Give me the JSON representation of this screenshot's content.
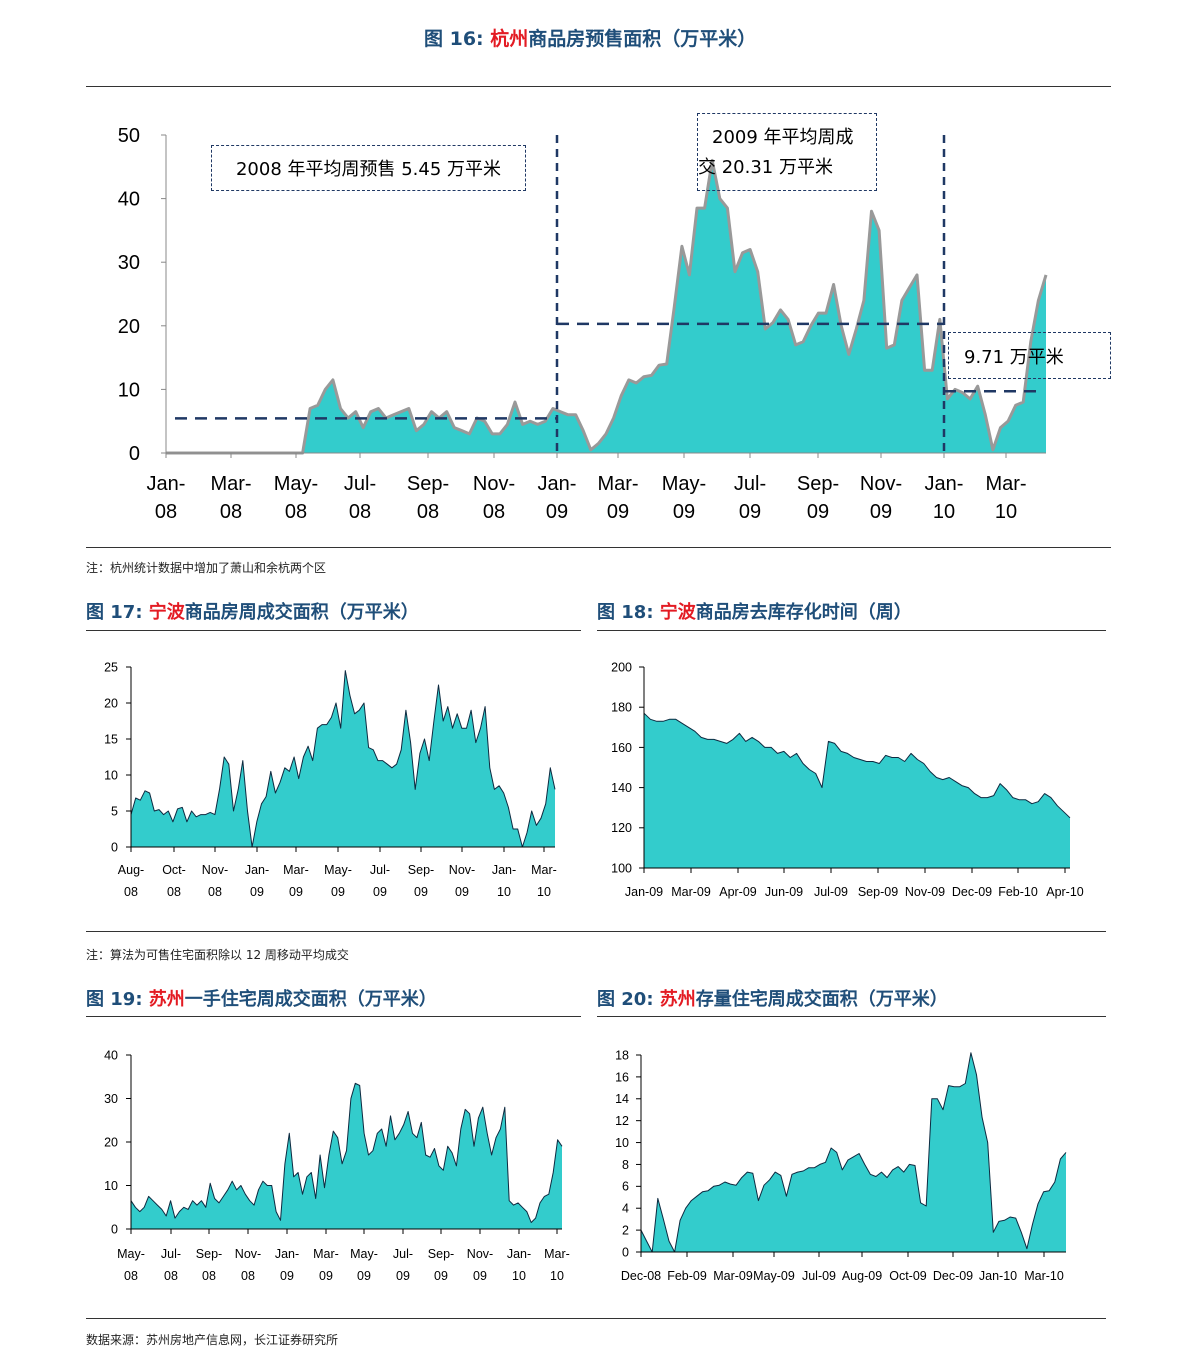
{
  "fig16": {
    "num": "图 16:",
    "city": "杭州",
    "rest": "商品房预售面积（万平米）",
    "note": "注：杭州统计数据中增加了萧山和余杭两个区",
    "annotations": [
      "2008 年平均周预售 5.45 万平米",
      "2009 年平均周成",
      "交 20.31 万平米",
      "9.71 万平米"
    ]
  },
  "fig17": {
    "num": "图 17:",
    "city": "宁波",
    "rest": "商品房周成交面积（万平米）"
  },
  "fig18": {
    "num": "图 18:",
    "city": "宁波",
    "rest": "商品房去库存化时间（周）"
  },
  "note2": "注：算法为可售住宅面积除以 12 周移动平均成交",
  "fig19": {
    "num": "图 19:",
    "city": "苏州",
    "rest": "一手住宅周成交面积（万平米）"
  },
  "fig20": {
    "num": "图 20:",
    "city": "苏州",
    "rest": "存量住宅周成交面积（万平米）"
  },
  "source": "数据来源：苏州房地产信息网，长江证券研究所",
  "colors": {
    "fill": "#33cccc",
    "title": "#1f4e79",
    "city": "#e31b23",
    "outline16": "#999999",
    "dash": "#1f3864"
  },
  "chart_data": [
    {
      "id": "fig16",
      "type": "area",
      "ylim": [
        0,
        50
      ],
      "yticks": [
        "0",
        "10",
        "20",
        "30",
        "40",
        "50"
      ],
      "xticks": [
        [
          "Jan-",
          "08"
        ],
        [
          "Mar-",
          "08"
        ],
        [
          "May-",
          "08"
        ],
        [
          "Jul-",
          "08"
        ],
        [
          "Sep-",
          "08"
        ],
        [
          "Nov-",
          "08"
        ],
        [
          "Jan-",
          "09"
        ],
        [
          "Mar-",
          "09"
        ],
        [
          "May-",
          "09"
        ],
        [
          "Jul-",
          "09"
        ],
        [
          "Sep-",
          "09"
        ],
        [
          "Nov-",
          "09"
        ],
        [
          "Jan-",
          "10"
        ],
        [
          "Mar-",
          "10"
        ]
      ],
      "averages": [
        5.45,
        20.31,
        9.71
      ],
      "values": [
        0,
        0,
        0,
        0,
        0,
        0,
        0,
        0,
        0,
        0,
        0,
        0,
        0,
        0,
        0,
        0,
        0,
        0,
        0,
        7,
        7.5,
        10,
        11.5,
        7,
        5.5,
        6.5,
        4,
        6.5,
        7,
        5.5,
        6,
        6.5,
        7,
        3.5,
        4.5,
        6.5,
        5.5,
        6.5,
        4,
        3.5,
        3,
        5.5,
        5,
        3,
        3,
        4.5,
        8,
        4.5,
        5,
        4.5,
        5,
        7,
        6.5,
        6,
        6,
        3.5,
        0.5,
        1.5,
        3,
        5.5,
        9,
        11.5,
        11,
        12,
        12.2,
        13.8,
        14,
        23,
        32.5,
        28,
        38.5,
        38.5,
        46,
        40,
        38.5,
        28.5,
        31.5,
        32,
        28.5,
        19.5,
        20.5,
        22.5,
        21,
        17,
        17.5,
        20,
        22,
        22,
        26.5,
        20,
        15.5,
        19.5,
        24,
        38,
        35,
        16.5,
        17,
        24,
        26,
        28,
        13,
        13,
        21,
        8.5,
        10,
        9.5,
        8.5,
        10.5,
        6,
        0.5,
        4,
        5,
        7.5,
        8,
        17.5,
        24,
        28
      ]
    },
    {
      "id": "fig17",
      "type": "area",
      "ylim": [
        0,
        25
      ],
      "yticks": [
        "0",
        "5",
        "10",
        "15",
        "20",
        "25"
      ],
      "xticks": [
        [
          "Aug-",
          "08"
        ],
        [
          "Oct-",
          "08"
        ],
        [
          "Nov-",
          "08"
        ],
        [
          "Jan-",
          "09"
        ],
        [
          "Mar-",
          "09"
        ],
        [
          "May-",
          "09"
        ],
        [
          "Jul-",
          "09"
        ],
        [
          "Sep-",
          "09"
        ],
        [
          "Nov-",
          "09"
        ],
        [
          "Jan-",
          "10"
        ],
        [
          "Mar-",
          "10"
        ]
      ],
      "values": [
        4.5,
        6.8,
        6.5,
        7.8,
        7.5,
        5,
        5.2,
        4.5,
        5,
        3.5,
        5.3,
        5.5,
        3.5,
        5,
        4.2,
        4.5,
        4.5,
        4.8,
        4.5,
        8,
        12.5,
        11.5,
        5,
        8,
        12,
        5,
        0,
        3.5,
        6,
        7,
        10.5,
        7.5,
        9,
        11,
        10.5,
        12.5,
        9.5,
        12.5,
        14,
        12,
        16.5,
        17,
        17,
        18,
        20,
        16.5,
        24.5,
        21,
        18.5,
        19,
        20,
        13.8,
        13.5,
        12,
        12,
        11.5,
        11,
        11.5,
        13.5,
        19,
        14.5,
        8,
        13,
        15,
        12,
        17.5,
        22.5,
        17.5,
        19.5,
        16.5,
        18.5,
        16.5,
        16.5,
        19,
        14.5,
        16.5,
        19.5,
        11,
        8,
        8.5,
        7.5,
        5.5,
        2.5,
        2.5,
        0,
        2,
        5,
        3,
        4,
        6,
        11,
        8
      ]
    },
    {
      "id": "fig18",
      "type": "area",
      "ylim": [
        100,
        200
      ],
      "yticks": [
        "100",
        "120",
        "140",
        "160",
        "180",
        "200"
      ],
      "xticks": [
        [
          "Jan-09"
        ],
        [
          "Mar-09"
        ],
        [
          "Apr-09"
        ],
        [
          "Jun-09"
        ],
        [
          "Jul-09"
        ],
        [
          "Sep-09"
        ],
        [
          "Nov-09"
        ],
        [
          "Dec-09"
        ],
        [
          "Feb-10"
        ],
        [
          "Apr-10"
        ]
      ],
      "values": [
        177,
        174,
        173,
        173,
        174,
        174,
        172,
        170,
        168,
        165,
        164,
        164,
        163,
        162,
        164,
        167,
        163,
        165,
        163,
        160,
        160,
        157,
        158,
        155,
        157,
        152,
        149,
        147,
        140,
        163,
        162,
        158,
        157,
        155,
        154,
        153,
        153,
        152,
        156,
        155,
        155,
        153,
        157,
        154,
        152,
        148,
        145,
        144,
        145,
        143,
        141,
        140,
        137,
        135,
        135,
        136,
        142,
        139,
        135,
        134,
        134,
        132,
        133,
        137,
        135,
        131,
        128,
        125
      ]
    },
    {
      "id": "fig19",
      "type": "area",
      "ylim": [
        0,
        40
      ],
      "yticks": [
        "0",
        "10",
        "20",
        "30",
        "40"
      ],
      "xticks": [
        [
          "May-",
          "08"
        ],
        [
          "Jul-",
          "08"
        ],
        [
          "Sep-",
          "08"
        ],
        [
          "Nov-",
          "08"
        ],
        [
          "Jan-",
          "09"
        ],
        [
          "Mar-",
          "09"
        ],
        [
          "May-",
          "09"
        ],
        [
          "Jul-",
          "09"
        ],
        [
          "Sep-",
          "09"
        ],
        [
          "Nov-",
          "09"
        ],
        [
          "Jan-",
          "10"
        ],
        [
          "Mar-",
          "10"
        ]
      ],
      "values": [
        6.5,
        5,
        4,
        5,
        7.5,
        6.5,
        5.5,
        4.5,
        3,
        6.5,
        2.5,
        4,
        5,
        4.5,
        6.5,
        5.5,
        6.5,
        5,
        10.5,
        7,
        6,
        7.5,
        9,
        11,
        9,
        10,
        8,
        6.5,
        5.5,
        9,
        11,
        10,
        10,
        4,
        2,
        15,
        22,
        12,
        13,
        8,
        12,
        13,
        7,
        17,
        9.5,
        17,
        22.5,
        21,
        15,
        18,
        30,
        33.5,
        33,
        22,
        17,
        18,
        22,
        23,
        19,
        26,
        20.5,
        22,
        24,
        27,
        22,
        21,
        24.5,
        17,
        16.5,
        18.5,
        14.5,
        13.5,
        19,
        17.5,
        14.5,
        23,
        27.5,
        26.5,
        19,
        25.5,
        28,
        22,
        17,
        21,
        23,
        28,
        6.5,
        5.5,
        6,
        5,
        4,
        1.5,
        2.5,
        6,
        7.5,
        8,
        13,
        20.5,
        19
      ]
    },
    {
      "id": "fig20",
      "type": "area",
      "ylim": [
        0,
        18
      ],
      "yticks": [
        "0",
        "2",
        "4",
        "6",
        "8",
        "10",
        "12",
        "14",
        "16",
        "18"
      ],
      "xticks": [
        [
          "Dec-08"
        ],
        [
          "Feb-09"
        ],
        [
          "Mar-09"
        ],
        [
          "May-09"
        ],
        [
          "Jul-09"
        ],
        [
          "Aug-09"
        ],
        [
          "Oct-09"
        ],
        [
          "Dec-09"
        ],
        [
          "Jan-10"
        ],
        [
          "Mar-10"
        ]
      ],
      "values": [
        2,
        1,
        0,
        4.9,
        3,
        1,
        0,
        2.9,
        4,
        4.7,
        5.1,
        5.5,
        5.6,
        6,
        6.1,
        6.4,
        6.2,
        6.1,
        6.8,
        7.3,
        7.2,
        4.7,
        6.1,
        6.6,
        7.3,
        7,
        5.1,
        7.1,
        7.3,
        7.4,
        7.7,
        7.7,
        8,
        8.2,
        9.5,
        9.1,
        7.5,
        8.4,
        8.7,
        9,
        8,
        7.1,
        6.9,
        7.3,
        6.8,
        7.5,
        7.8,
        7.3,
        8,
        7.9,
        4.5,
        4.2,
        14,
        14,
        13,
        15.2,
        15.1,
        15.1,
        15.4,
        18.2,
        16.2,
        12.3,
        10,
        1.8,
        2.8,
        2.9,
        3.2,
        3.1,
        1.8,
        0.3,
        2.5,
        4.4,
        5.5,
        5.6,
        6.4,
        8.5,
        9.1
      ]
    }
  ]
}
